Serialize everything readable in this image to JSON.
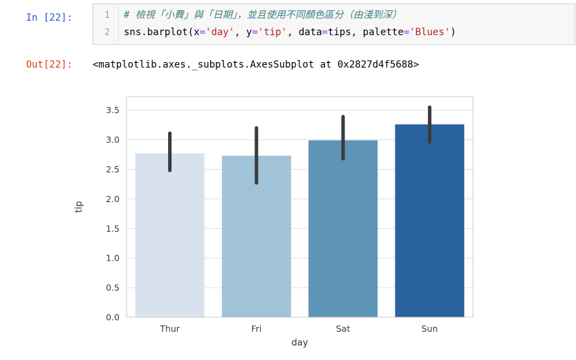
{
  "notebook": {
    "input_prompt": "In [22]:",
    "output_prompt": "Out[22]:",
    "output_text": "<matplotlib.axes._subplots.AxesSubplot at 0x2827d4f5688>",
    "code_lines": [
      {
        "number": "1",
        "tokens": [
          {
            "text": "# 檢視「小費」與「日期」，並且使用不同顏色區分（由淺到深）",
            "style": "comment"
          }
        ]
      },
      {
        "number": "2",
        "tokens": [
          {
            "text": "sns.barplot(x",
            "style": "plain"
          },
          {
            "text": "=",
            "style": "operator"
          },
          {
            "text": "'day'",
            "style": "string"
          },
          {
            "text": ", y",
            "style": "plain"
          },
          {
            "text": "=",
            "style": "operator"
          },
          {
            "text": "'tip'",
            "style": "string"
          },
          {
            "text": ", data",
            "style": "plain"
          },
          {
            "text": "=",
            "style": "operator"
          },
          {
            "text": "tips",
            "style": "plain"
          },
          {
            "text": ", palette",
            "style": "plain"
          },
          {
            "text": "=",
            "style": "operator"
          },
          {
            "text": "'Blues'",
            "style": "string"
          },
          {
            "text": ")",
            "style": "plain"
          }
        ]
      }
    ],
    "colors": {
      "input_prompt": "#2c5bc7",
      "output_prompt": "#d84315",
      "comment": "#408080",
      "string": "#ba2121",
      "operator": "#aa22ff",
      "cell_border": "#cfcfcf",
      "cell_bg": "#f7f7f7"
    }
  },
  "chart_data": {
    "type": "bar",
    "title": "",
    "xlabel": "day",
    "ylabel": "tip",
    "categories": [
      "Thur",
      "Fri",
      "Sat",
      "Sun"
    ],
    "values": [
      2.77,
      2.73,
      2.99,
      3.26
    ],
    "error_bars": [
      [
        2.48,
        3.11
      ],
      [
        2.27,
        3.2
      ],
      [
        2.68,
        3.39
      ],
      [
        2.96,
        3.55
      ]
    ],
    "bar_colors": [
      "#d7e2ee",
      "#a1c3d7",
      "#5e94b8",
      "#2a62a0"
    ],
    "error_bar_color": "#3b3b3b",
    "yticks": [
      0.0,
      0.5,
      1.0,
      1.5,
      2.0,
      2.5,
      3.0,
      3.5
    ],
    "ylim": [
      0,
      3.73
    ],
    "grid": "horizontal",
    "gridline_color": "#e0e0e0",
    "spine_color": "#cccccc",
    "legend": "none"
  }
}
